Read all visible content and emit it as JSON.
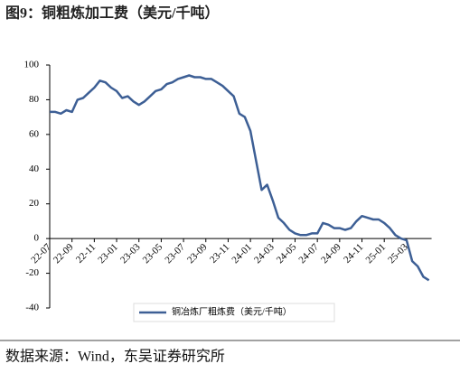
{
  "chart_data": {
    "type": "line",
    "title": "图9：铜粗炼加工费（美元/千吨）",
    "categories": [
      "22-07",
      null,
      null,
      null,
      "22-09",
      null,
      null,
      null,
      "22-11",
      null,
      null,
      null,
      "23-01",
      null,
      null,
      null,
      "23-03",
      null,
      null,
      null,
      "23-05",
      null,
      null,
      null,
      "23-07",
      null,
      null,
      null,
      "23-09",
      null,
      null,
      null,
      "23-11",
      null,
      null,
      null,
      "24-01",
      null,
      null,
      null,
      "24-03",
      null,
      null,
      null,
      "24-05",
      null,
      null,
      null,
      "24-07",
      null,
      null,
      null,
      "24-09",
      null,
      null,
      null,
      "24-11",
      null,
      null,
      null,
      "25-01",
      null,
      null,
      null,
      "25-03",
      null,
      null,
      null,
      null
    ],
    "series": [
      {
        "name": "铜冶炼厂粗炼费（美元/千吨）",
        "color": "#3d5f95",
        "values": [
          73,
          73,
          72,
          74,
          73,
          80,
          81,
          84,
          87,
          91,
          90,
          87,
          85,
          81,
          82,
          79,
          77,
          79,
          82,
          85,
          86,
          89,
          90,
          92,
          93,
          94,
          93,
          93,
          92,
          92,
          90,
          88,
          85,
          82,
          72,
          70,
          62,
          45,
          28,
          31,
          22,
          12,
          9,
          5,
          3,
          2,
          2,
          3,
          3,
          9,
          8,
          6,
          6,
          5,
          6,
          10,
          13,
          12,
          11,
          11,
          9,
          6,
          2,
          0,
          -1,
          -13,
          -16,
          -22,
          -24
        ]
      }
    ],
    "ylim": [
      -40,
      100
    ],
    "yticks": [
      -40,
      -20,
      0,
      20,
      40,
      60,
      80,
      100
    ],
    "legend": "bottom",
    "source": "数据来源：Wind，东吴证券研究所"
  }
}
